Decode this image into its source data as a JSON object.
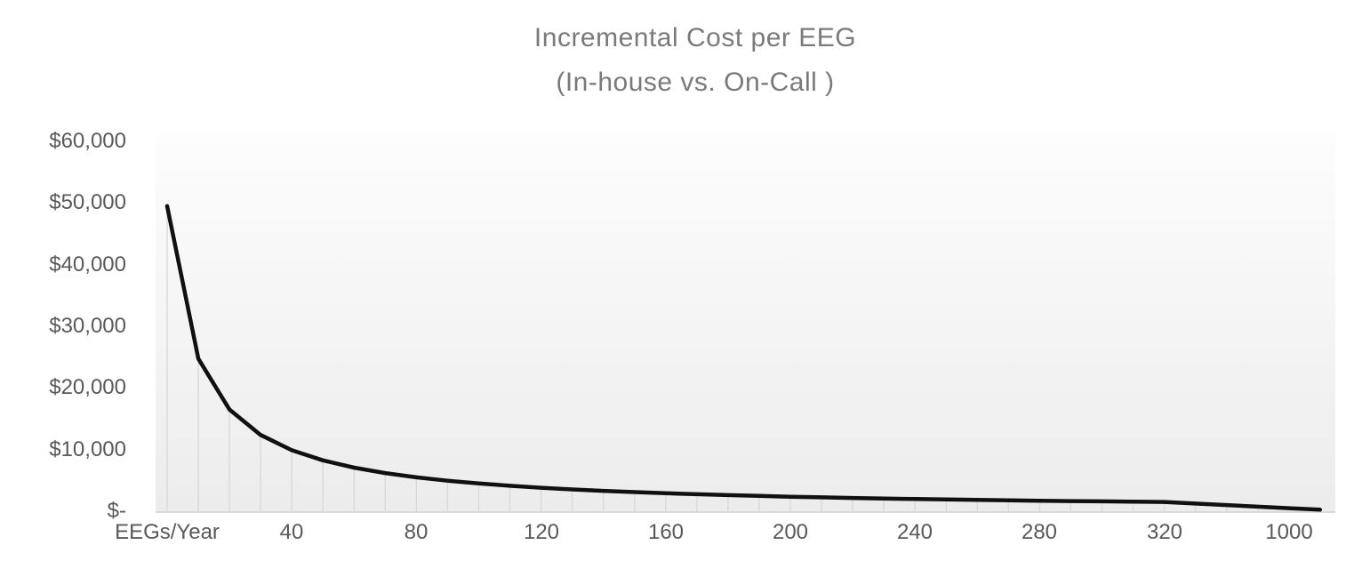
{
  "chart_data": {
    "type": "line",
    "title": "Incremental Cost per EEG",
    "subtitle": "(In-house vs. On-Call )",
    "xlabel": "EEGs/Year",
    "ylabel": "",
    "ylim": [
      0,
      60000
    ],
    "y_tick_labels": [
      "$-",
      "$10,000",
      "$20,000",
      "$30,000",
      "$40,000",
      "$50,000",
      "$60,000"
    ],
    "y_tick_values": [
      0,
      10000,
      20000,
      30000,
      40000,
      50000,
      60000
    ],
    "x_tick_labels": [
      "EEGs/Year",
      "40",
      "80",
      "120",
      "160",
      "200",
      "240",
      "280",
      "320",
      "1000"
    ],
    "x_tick_every_n_points": 4,
    "legend": "none",
    "gridlines": "vertical drop line from each data point down to the x-axis",
    "series": [
      {
        "name": "Incremental Cost per EEG (In-house vs. On-Call)",
        "color": "#101010",
        "values": [
          49500,
          24750,
          16500,
          12375,
          9900,
          8250,
          7071,
          6188,
          5500,
          4950,
          4500,
          4125,
          3808,
          3536,
          3300,
          3094,
          2912,
          2750,
          2605,
          2475,
          2357,
          2250,
          2152,
          2063,
          1980,
          1904,
          1833,
          1768,
          1707,
          1650,
          1597,
          1547,
          1500,
          1238,
          990,
          742,
          495,
          248
        ]
      }
    ],
    "colors": {
      "title_text": "#7a7a7a",
      "tick_label_text": "#595959",
      "drop_line": "#d9d9d9",
      "axis_line": "#d9d9d9",
      "plot_bg_top": "#fdfdfd",
      "plot_bg_bottom": "#ececec",
      "page_bg": "#ffffff"
    }
  }
}
